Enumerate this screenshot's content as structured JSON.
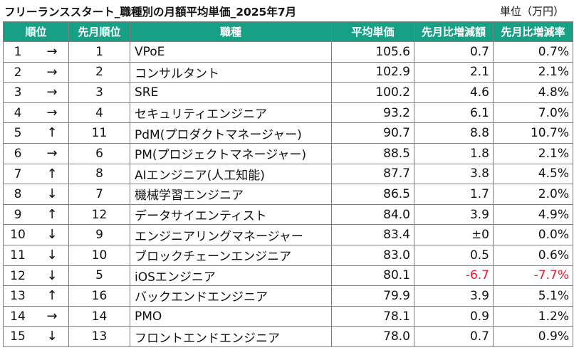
{
  "title": "フリーランススタート_職種別の月額平均単価_2025年7月",
  "unit": "単位（万円）",
  "headers": {
    "rank": "順位",
    "prev_rank": "先月順位",
    "job": "職種",
    "avg_price": "平均単価",
    "diff_amount": "先月比増減額",
    "diff_rate": "先月比増減率"
  },
  "colors": {
    "header_bg": "#16a085",
    "header_text": "#ffffff",
    "negative": "#e8192c"
  },
  "rows": [
    {
      "rank": "1",
      "arrow": "→",
      "prev_rank": "1",
      "job": "VPoE",
      "avg_price": "105.6",
      "diff_amount": "0.7",
      "diff_rate": "0.7%",
      "negative": false
    },
    {
      "rank": "2",
      "arrow": "→",
      "prev_rank": "2",
      "job": "コンサルタント",
      "avg_price": "102.9",
      "diff_amount": "2.1",
      "diff_rate": "2.1%",
      "negative": false
    },
    {
      "rank": "3",
      "arrow": "→",
      "prev_rank": "3",
      "job": "SRE",
      "avg_price": "100.2",
      "diff_amount": "4.6",
      "diff_rate": "4.8%",
      "negative": false
    },
    {
      "rank": "4",
      "arrow": "→",
      "prev_rank": "4",
      "job": "セキュリティエンジニア",
      "avg_price": "93.2",
      "diff_amount": "6.1",
      "diff_rate": "7.0%",
      "negative": false
    },
    {
      "rank": "5",
      "arrow": "↑",
      "prev_rank": "11",
      "job": "PdM(プロダクトマネージャー)",
      "avg_price": "90.7",
      "diff_amount": "8.8",
      "diff_rate": "10.7%",
      "negative": false
    },
    {
      "rank": "6",
      "arrow": "→",
      "prev_rank": "6",
      "job": "PM(プロジェクトマネージャー)",
      "avg_price": "88.5",
      "diff_amount": "1.8",
      "diff_rate": "2.1%",
      "negative": false
    },
    {
      "rank": "7",
      "arrow": "↑",
      "prev_rank": "8",
      "job": "AIエンジニア(人工知能)",
      "avg_price": "87.7",
      "diff_amount": "3.8",
      "diff_rate": "4.5%",
      "negative": false
    },
    {
      "rank": "8",
      "arrow": "↓",
      "prev_rank": "7",
      "job": "機械学習エンジニア",
      "avg_price": "86.5",
      "diff_amount": "1.7",
      "diff_rate": "2.0%",
      "negative": false
    },
    {
      "rank": "9",
      "arrow": "↑",
      "prev_rank": "12",
      "job": "データサイエンティスト",
      "avg_price": "84.0",
      "diff_amount": "3.9",
      "diff_rate": "4.9%",
      "negative": false
    },
    {
      "rank": "10",
      "arrow": "↓",
      "prev_rank": "9",
      "job": "エンジニアリングマネージャー",
      "avg_price": "83.4",
      "diff_amount": "±0",
      "diff_rate": "0.0%",
      "negative": false
    },
    {
      "rank": "11",
      "arrow": "↓",
      "prev_rank": "10",
      "job": "ブロックチェーンエンジニア",
      "avg_price": "83.0",
      "diff_amount": "0.5",
      "diff_rate": "0.6%",
      "negative": false
    },
    {
      "rank": "12",
      "arrow": "↓",
      "prev_rank": "5",
      "job": "iOSエンジニア",
      "avg_price": "80.1",
      "diff_amount": "-6.7",
      "diff_rate": "-7.7%",
      "negative": true
    },
    {
      "rank": "13",
      "arrow": "↑",
      "prev_rank": "16",
      "job": "バックエンドエンジニア",
      "avg_price": "79.9",
      "diff_amount": "3.9",
      "diff_rate": "5.1%",
      "negative": false
    },
    {
      "rank": "14",
      "arrow": "→",
      "prev_rank": "14",
      "job": "PMO",
      "avg_price": "78.1",
      "diff_amount": "0.9",
      "diff_rate": "1.2%",
      "negative": false
    },
    {
      "rank": "15",
      "arrow": "↓",
      "prev_rank": "13",
      "job": "フロントエンドエンジニア",
      "avg_price": "78.0",
      "diff_amount": "0.7",
      "diff_rate": "0.9%",
      "negative": false
    }
  ]
}
